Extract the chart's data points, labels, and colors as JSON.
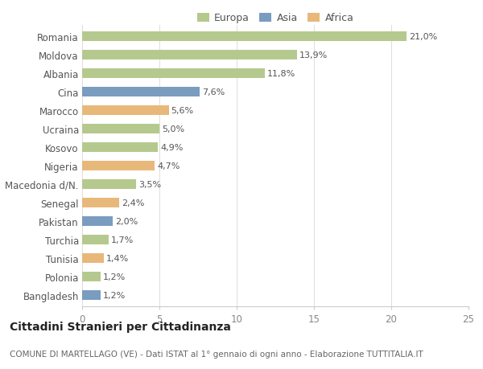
{
  "categories": [
    "Romania",
    "Moldova",
    "Albania",
    "Cina",
    "Marocco",
    "Ucraina",
    "Kosovo",
    "Nigeria",
    "Macedonia d/N.",
    "Senegal",
    "Pakistan",
    "Turchia",
    "Tunisia",
    "Polonia",
    "Bangladesh"
  ],
  "values": [
    21.0,
    13.9,
    11.8,
    7.6,
    5.6,
    5.0,
    4.9,
    4.7,
    3.5,
    2.4,
    2.0,
    1.7,
    1.4,
    1.2,
    1.2
  ],
  "labels": [
    "21,0%",
    "13,9%",
    "11,8%",
    "7,6%",
    "5,6%",
    "5,0%",
    "4,9%",
    "4,7%",
    "3,5%",
    "2,4%",
    "2,0%",
    "1,7%",
    "1,4%",
    "1,2%",
    "1,2%"
  ],
  "continents": [
    "Europa",
    "Europa",
    "Europa",
    "Asia",
    "Africa",
    "Europa",
    "Europa",
    "Africa",
    "Europa",
    "Africa",
    "Asia",
    "Europa",
    "Africa",
    "Europa",
    "Asia"
  ],
  "colors": {
    "Europa": "#b5c98e",
    "Asia": "#7a9cbf",
    "Africa": "#e8b87a"
  },
  "legend_order": [
    "Europa",
    "Asia",
    "Africa"
  ],
  "xlim": [
    0,
    25
  ],
  "xticks": [
    0,
    5,
    10,
    15,
    20,
    25
  ],
  "title": "Cittadini Stranieri per Cittadinanza",
  "subtitle": "COMUNE DI MARTELLAGO (VE) - Dati ISTAT al 1° gennaio di ogni anno - Elaborazione TUTTITALIA.IT",
  "bg_color": "#ffffff",
  "bar_height": 0.55,
  "label_fontsize": 8,
  "ytick_fontsize": 8.5,
  "xtick_fontsize": 8.5,
  "title_fontsize": 10,
  "subtitle_fontsize": 7.5
}
